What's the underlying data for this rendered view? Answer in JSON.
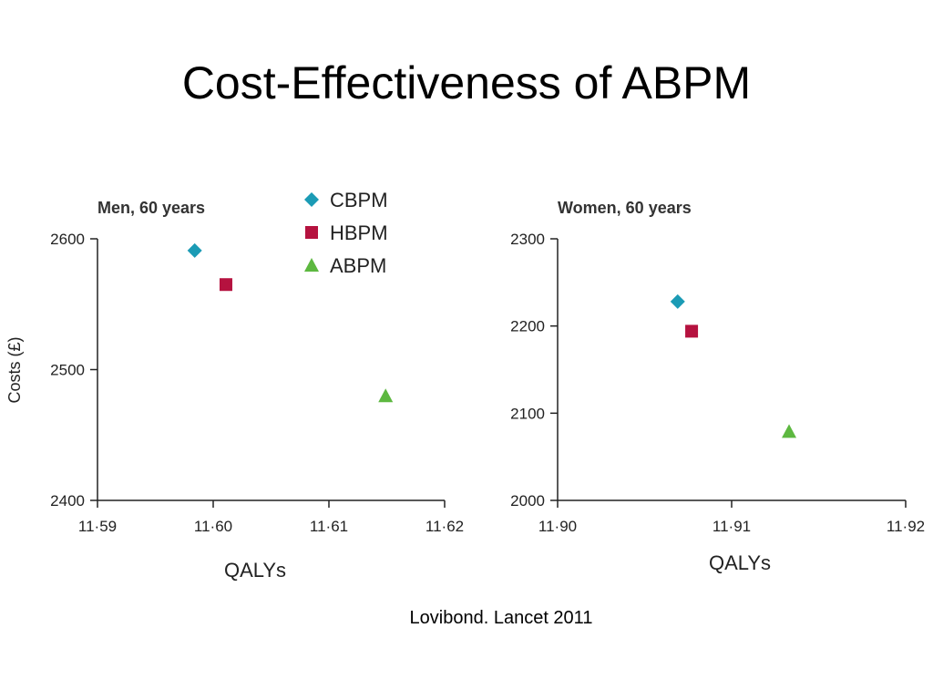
{
  "slide": {
    "title": "Cost-Effectiveness of ABPM",
    "citation": "Lovibond.  Lancet 2011"
  },
  "colors": {
    "CBPM": "#1b9bb5",
    "HBPM": "#b5123f",
    "ABPM": "#5db840",
    "axis": "#222222"
  },
  "legend": [
    {
      "name": "CBPM",
      "marker": "diamond"
    },
    {
      "name": "HBPM",
      "marker": "square"
    },
    {
      "name": "ABPM",
      "marker": "triangle"
    }
  ],
  "chart_data": [
    {
      "type": "scatter",
      "title": "Men, 60 years",
      "xlabel": "QALYs",
      "ylabel": "Costs (£)",
      "xlim": [
        11.59,
        11.62
      ],
      "ylim": [
        2400,
        2600
      ],
      "xticks": [
        11.59,
        11.6,
        11.61,
        11.62
      ],
      "xtick_labels": [
        "11·59",
        "11·60",
        "11·61",
        "11·62"
      ],
      "yticks": [
        2400,
        2500,
        2600
      ],
      "ytick_labels": [
        "2400",
        "2500",
        "2600"
      ],
      "grid": false,
      "legend_position": "top",
      "series": [
        {
          "name": "CBPM",
          "x": 11.5984,
          "y": 2591
        },
        {
          "name": "HBPM",
          "x": 11.6011,
          "y": 2565
        },
        {
          "name": "ABPM",
          "x": 11.6149,
          "y": 2480
        }
      ]
    },
    {
      "type": "scatter",
      "title": "Women, 60 years",
      "xlabel": "QALYs",
      "ylabel": "",
      "xlim": [
        11.9,
        11.92
      ],
      "ylim": [
        2000,
        2300
      ],
      "xticks": [
        11.9,
        11.91,
        11.92
      ],
      "xtick_labels": [
        "11·90",
        "11·91",
        "11·92"
      ],
      "yticks": [
        2000,
        2100,
        2200,
        2300
      ],
      "ytick_labels": [
        "2000",
        "2100",
        "2200",
        "2300"
      ],
      "grid": false,
      "series": [
        {
          "name": "CBPM",
          "x": 11.9069,
          "y": 2228
        },
        {
          "name": "HBPM",
          "x": 11.9077,
          "y": 2194
        },
        {
          "name": "ABPM",
          "x": 11.9133,
          "y": 2079
        }
      ]
    }
  ]
}
